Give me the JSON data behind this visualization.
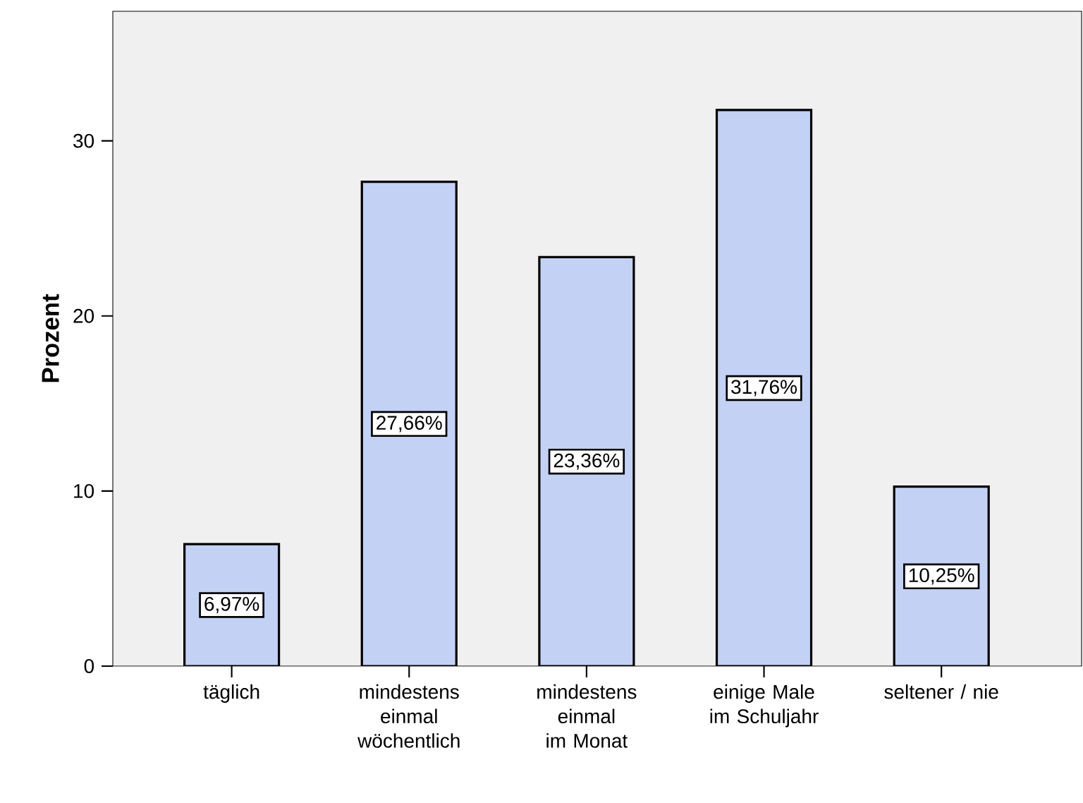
{
  "chart_data": {
    "type": "bar",
    "ylabel": "Prozent",
    "categories": [
      "täglich",
      "mindestens einmal wöchentlich",
      "mindestens einmal im Monat",
      "einige Male im Schuljahr",
      "seltener / nie"
    ],
    "values": [
      6.97,
      27.66,
      23.36,
      31.76,
      10.25
    ],
    "value_labels": [
      "6,97%",
      "27,66%",
      "23,36%",
      "31,76%",
      "10,25%"
    ],
    "color": "#c3d1f5",
    "ylim": [
      0,
      37.4
    ],
    "yticks": [
      0,
      10,
      20,
      30
    ]
  }
}
